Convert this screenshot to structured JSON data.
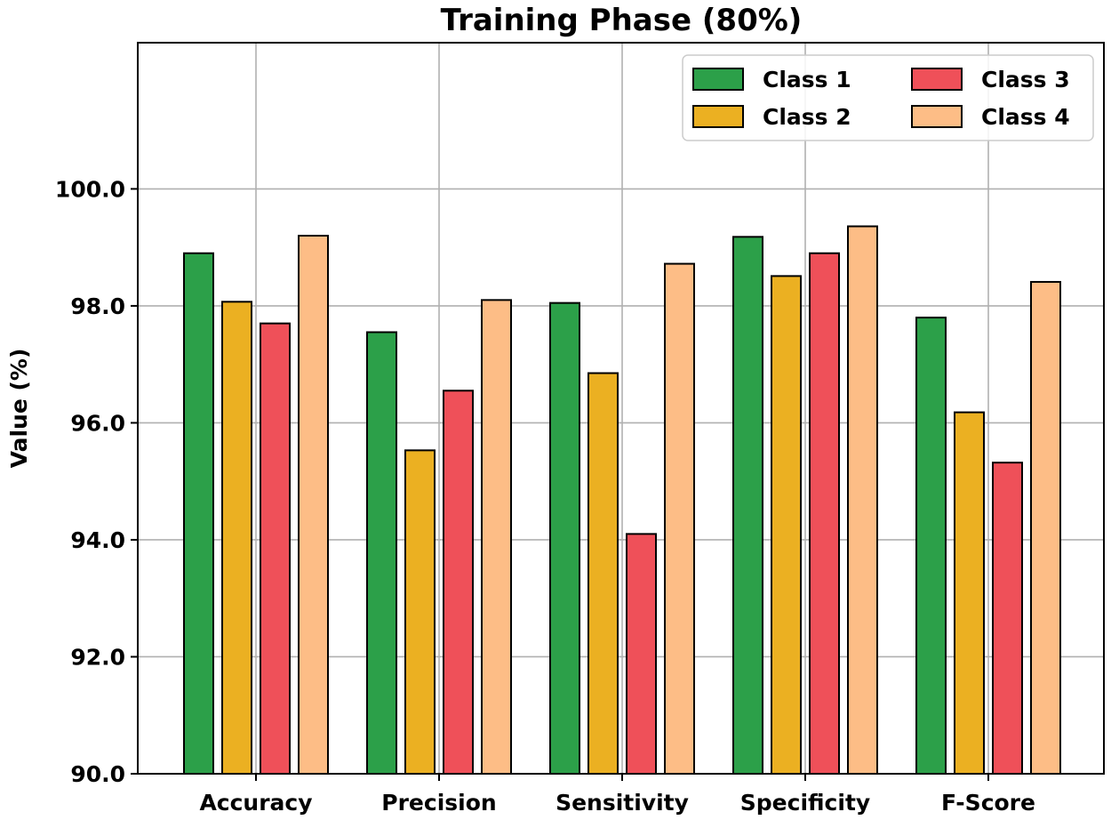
{
  "chart_data": {
    "type": "bar",
    "title": "Training Phase (80%)",
    "xlabel": "",
    "ylabel": "Value (%)",
    "ylim": [
      90.0,
      102.5
    ],
    "yticks": [
      90.0,
      92.0,
      94.0,
      96.0,
      98.0,
      100.0
    ],
    "ytick_labels": [
      "90.0",
      "92.0",
      "94.0",
      "96.0",
      "98.0",
      "100.0"
    ],
    "grid": true,
    "legend_position": "top-right",
    "categories": [
      "Accuracy",
      "Precision",
      "Sensitivity",
      "Specificity",
      "F-Score"
    ],
    "series": [
      {
        "name": "Class 1",
        "color": "#2ca049",
        "values": [
          98.9,
          97.55,
          98.05,
          99.18,
          97.8
        ]
      },
      {
        "name": "Class 2",
        "color": "#ebb022",
        "values": [
          98.07,
          95.53,
          96.85,
          98.51,
          96.18
        ]
      },
      {
        "name": "Class 3",
        "color": "#ef5059",
        "values": [
          97.7,
          96.55,
          94.1,
          98.9,
          95.32
        ]
      },
      {
        "name": "Class 4",
        "color": "#fdbd86",
        "values": [
          99.2,
          98.1,
          98.72,
          99.36,
          98.41
        ]
      }
    ]
  }
}
